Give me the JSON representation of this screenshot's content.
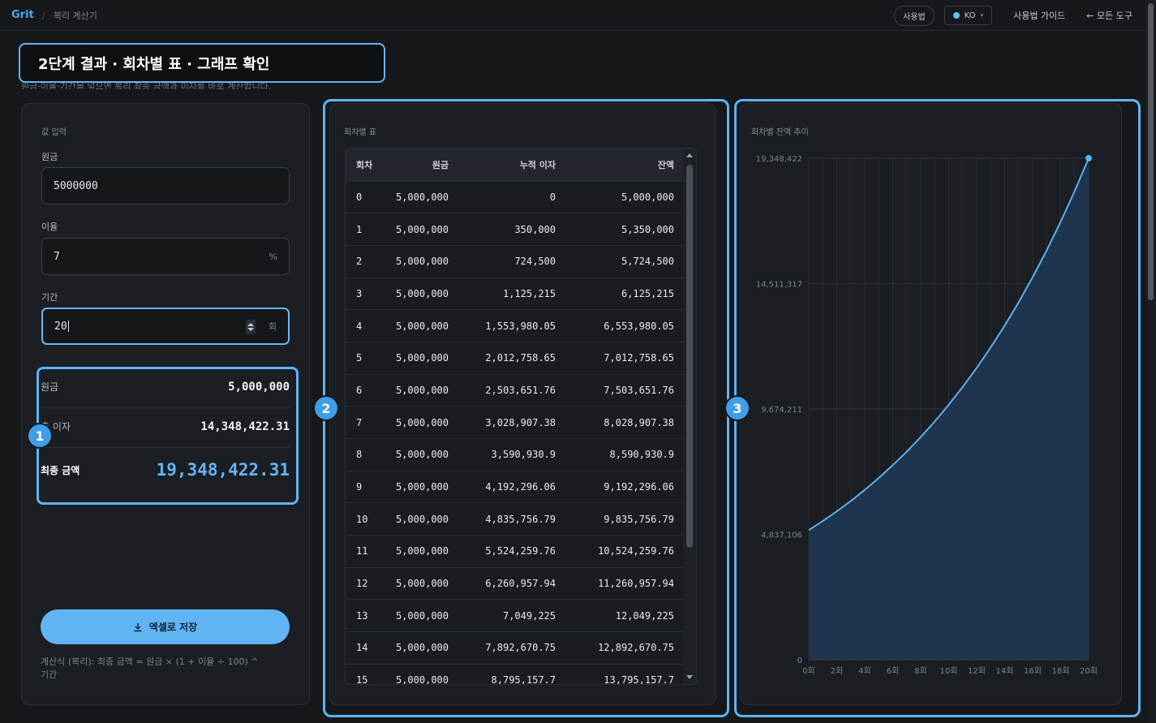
{
  "header": {
    "brand": "Grit",
    "separator": "/",
    "breadcrumb": "복리 계산기",
    "usage_pill": "사용법",
    "lang": "KO",
    "lang_chevron": "▾",
    "guide_link": "사용법 가이드",
    "all_tools_link": "← 모든 도구"
  },
  "step_label": "2단계 결과 · 회차별 표 · 그래프 확인",
  "subdesc": "원금·이율·기간을 넣으면 복리 최종 금액과 이자를 바로 계산합니다.",
  "input_card": {
    "title": "값 입력",
    "principal_label": "원금",
    "principal_value": "5000000",
    "rate_label": "이율",
    "rate_value": "7",
    "rate_unit": "%",
    "period_label": "기간",
    "period_value": "20",
    "period_unit": "회"
  },
  "summary": {
    "principal_label": "원금",
    "principal_value": "5,000,000",
    "interest_label": "총 이자",
    "interest_value": "14,348,422.31",
    "final_label": "최종 금액",
    "final_value": "19,348,422.31"
  },
  "export_button": "엑셀로 저장",
  "formula_prefix": "계산식 (복리): 최종 금액 = 원금 × (1 + 이율 ÷ 100) ^",
  "formula_suffix": "기간",
  "badges": [
    "1",
    "2",
    "3"
  ],
  "table": {
    "title": "회차별 표",
    "headers": [
      "회차",
      "원금",
      "누적 이자",
      "잔액"
    ],
    "rows": [
      [
        "0",
        "5,000,000",
        "0",
        "5,000,000"
      ],
      [
        "1",
        "5,000,000",
        "350,000",
        "5,350,000"
      ],
      [
        "2",
        "5,000,000",
        "724,500",
        "5,724,500"
      ],
      [
        "3",
        "5,000,000",
        "1,125,215",
        "6,125,215"
      ],
      [
        "4",
        "5,000,000",
        "1,553,980.05",
        "6,553,980.05"
      ],
      [
        "5",
        "5,000,000",
        "2,012,758.65",
        "7,012,758.65"
      ],
      [
        "6",
        "5,000,000",
        "2,503,651.76",
        "7,503,651.76"
      ],
      [
        "7",
        "5,000,000",
        "3,028,907.38",
        "8,028,907.38"
      ],
      [
        "8",
        "5,000,000",
        "3,590,930.9",
        "8,590,930.9"
      ],
      [
        "9",
        "5,000,000",
        "4,192,296.06",
        "9,192,296.06"
      ],
      [
        "10",
        "5,000,000",
        "4,835,756.79",
        "9,835,756.79"
      ],
      [
        "11",
        "5,000,000",
        "5,524,259.76",
        "10,524,259.76"
      ],
      [
        "12",
        "5,000,000",
        "6,260,957.94",
        "11,260,957.94"
      ],
      [
        "13",
        "5,000,000",
        "7,049,225",
        "12,049,225"
      ],
      [
        "14",
        "5,000,000",
        "7,892,670.75",
        "12,892,670.75"
      ],
      [
        "15",
        "5,000,000",
        "8,795,157.7",
        "13,795,157.7"
      ]
    ]
  },
  "chart_data": {
    "type": "area",
    "title": "회차별 잔액 추이",
    "x": [
      0,
      1,
      2,
      3,
      4,
      5,
      6,
      7,
      8,
      9,
      10,
      11,
      12,
      13,
      14,
      15,
      16,
      17,
      18,
      19,
      20
    ],
    "values": [
      5000000,
      5350000,
      5724500,
      6125215,
      6553980.05,
      7012758.65,
      7503651.76,
      8028907.38,
      8590930.9,
      9192296.06,
      9835756.79,
      10524259.76,
      11260957.94,
      12049225,
      12892670.75,
      13795157.7,
      14760818.74,
      15794076.05,
      16899661.37,
      18082637.67,
      19348422.31
    ],
    "ylim": [
      0,
      19348422
    ],
    "yticks": [
      "0",
      "4,837,106",
      "9,674,211",
      "14,511,317",
      "19,348,422"
    ],
    "xticks": [
      "0회",
      "2회",
      "4회",
      "6회",
      "8회",
      "10회",
      "12회",
      "14회",
      "16회",
      "18회",
      "20회"
    ],
    "grid": true,
    "color": "#5bb1f0"
  }
}
